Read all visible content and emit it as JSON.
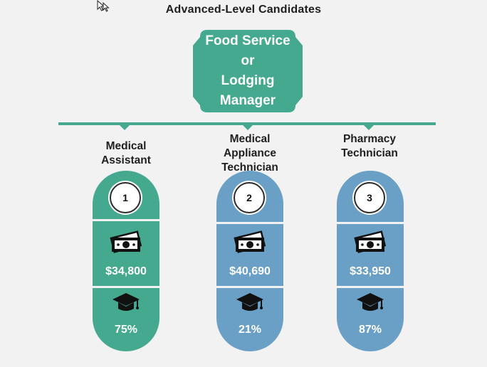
{
  "title": "Advanced-Level Candidates",
  "top_node": {
    "label_lines": [
      "Food Service",
      "or",
      "Lodging",
      "Manager"
    ]
  },
  "colors": {
    "green": "#44a98f",
    "blue": "#6a9fc6",
    "background": "#f2f2f2"
  },
  "careers": [
    {
      "rank": "1",
      "name_lines": [
        "Medical",
        "Assistant"
      ],
      "salary": "$34,800",
      "percent": "75%",
      "color": "green",
      "salary_icon": "money-icon",
      "education_icon": "graduation-cap-icon"
    },
    {
      "rank": "2",
      "name_lines": [
        "Medical",
        "Appliance",
        "Technician"
      ],
      "salary": "$40,690",
      "percent": "21%",
      "color": "blue",
      "salary_icon": "money-icon",
      "education_icon": "graduation-cap-icon"
    },
    {
      "rank": "3",
      "name_lines": [
        "Pharmacy",
        "Technician"
      ],
      "salary": "$33,950",
      "percent": "87%",
      "color": "blue",
      "salary_icon": "money-icon",
      "education_icon": "graduation-cap-icon"
    }
  ]
}
